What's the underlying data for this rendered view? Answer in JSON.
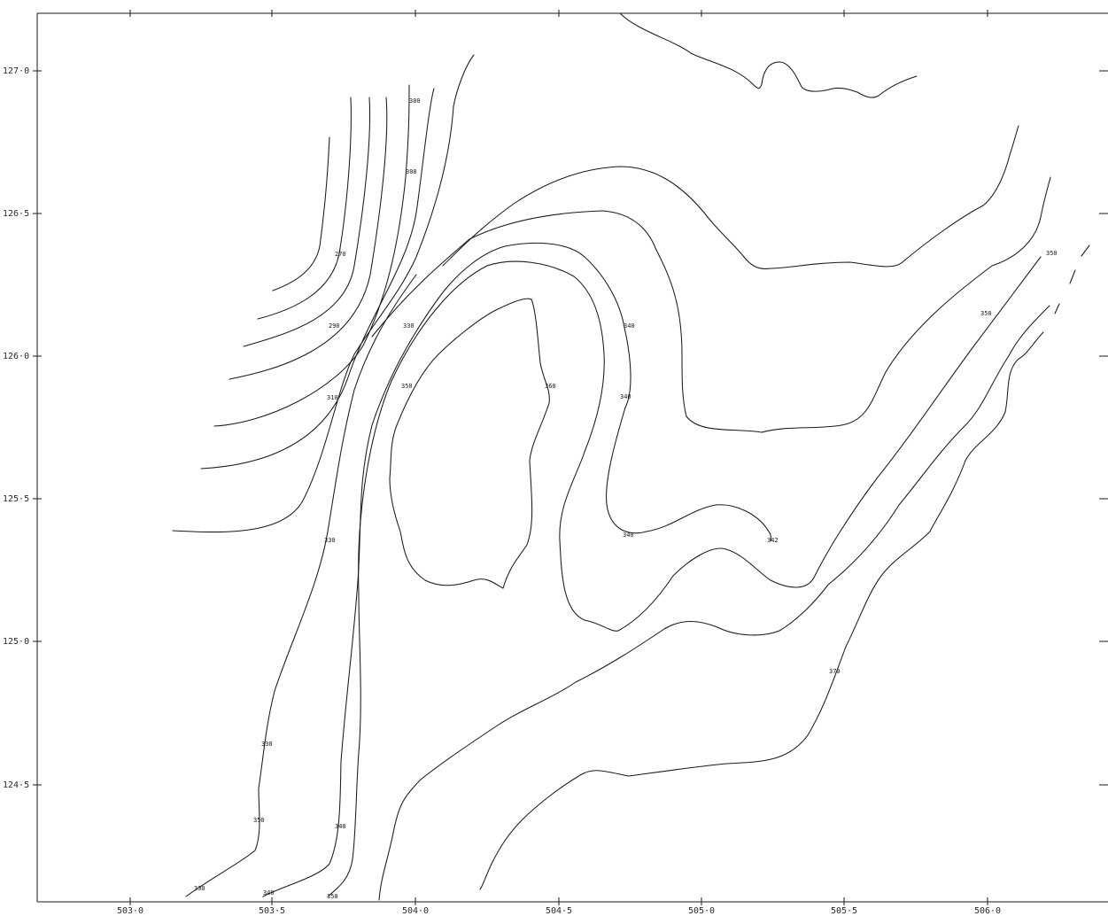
{
  "map": {
    "x_ticks": [
      "503·0",
      "503·5",
      "504·0",
      "504·5",
      "505·0",
      "505·5",
      "506·0"
    ],
    "y_ticks": [
      "127·0",
      "126·5",
      "126·0",
      "125·5",
      "125·0",
      "124·5"
    ],
    "contour_labels": [
      "270",
      "290",
      "300",
      "300",
      "310",
      "330",
      "330",
      "330",
      "330",
      "340",
      "340",
      "340",
      "340",
      "340",
      "342",
      "350",
      "350",
      "350",
      "350",
      "350",
      "360",
      "370"
    ],
    "line_color": "#1a1a1a",
    "background": "#ffffff"
  }
}
